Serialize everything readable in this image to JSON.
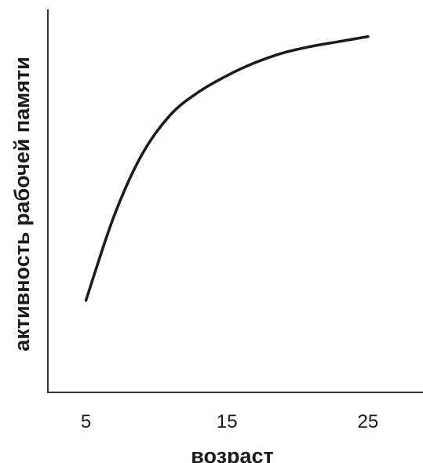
{
  "chart_data": {
    "type": "line",
    "xlabel": "возраст",
    "ylabel": "активность рабочей памяти",
    "x_ticks": [
      5,
      15,
      25
    ],
    "x_tick_labels": [
      "5",
      "15",
      "25"
    ],
    "xlim": [
      2.3,
      28.9
    ],
    "ylim": [
      0,
      1
    ],
    "y_ticks": [],
    "grid": false,
    "legend": "none",
    "colors": {
      "line": "#1a1a1a",
      "axes": "#333333",
      "text": "#1a1a1a"
    },
    "series": [
      {
        "x": [
          5,
          7,
          9,
          11,
          13,
          15,
          17,
          19,
          21,
          23,
          25
        ],
        "y": [
          0.15,
          0.41,
          0.6,
          0.72,
          0.79,
          0.84,
          0.88,
          0.91,
          0.93,
          0.945,
          0.96
        ]
      }
    ]
  }
}
